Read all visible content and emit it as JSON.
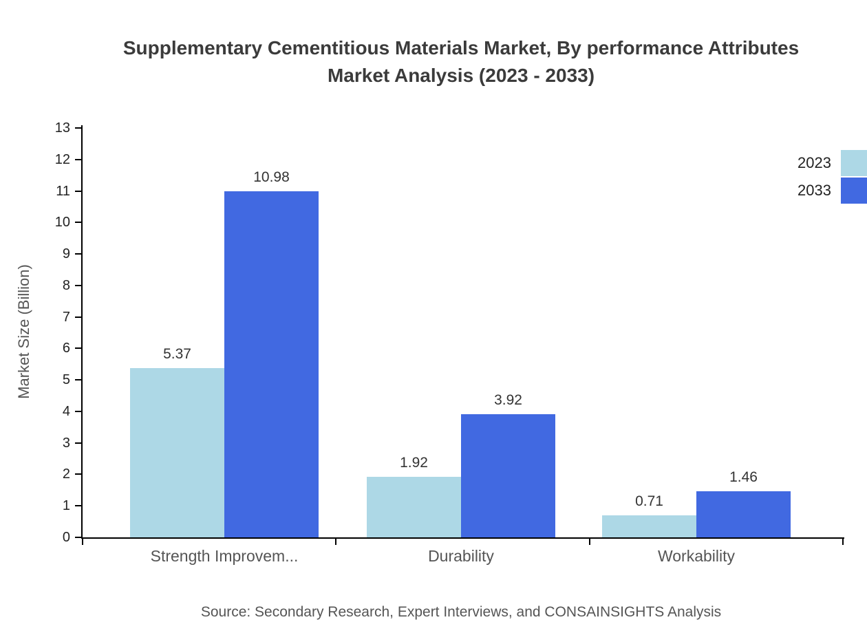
{
  "title": {
    "line1": "Supplementary Cementitious Materials Market, By performance Attributes",
    "line2": "Market Analysis (2023 - 2033)"
  },
  "chart_data": {
    "type": "bar",
    "title": "Supplementary Cementitious Materials Market, By performance Attributes Market Analysis (2023 - 2033)",
    "categories": [
      "Strength Improvem...",
      "Durability",
      "Workability"
    ],
    "series": [
      {
        "name": "2023",
        "color": "#ADD8E6",
        "values": [
          5.37,
          1.92,
          0.71
        ]
      },
      {
        "name": "2033",
        "color": "#4169E1",
        "values": [
          10.98,
          3.92,
          1.46
        ]
      }
    ],
    "xlabel": "",
    "ylabel": "Market Size (Billion)",
    "ylim": [
      0,
      13
    ],
    "ytick_step": 1,
    "grid": false,
    "legend_position": "top-right",
    "value_label_decimals": 2
  },
  "source": "Source: Secondary Research, Expert Interviews, and CONSAINSIGHTS Analysis"
}
